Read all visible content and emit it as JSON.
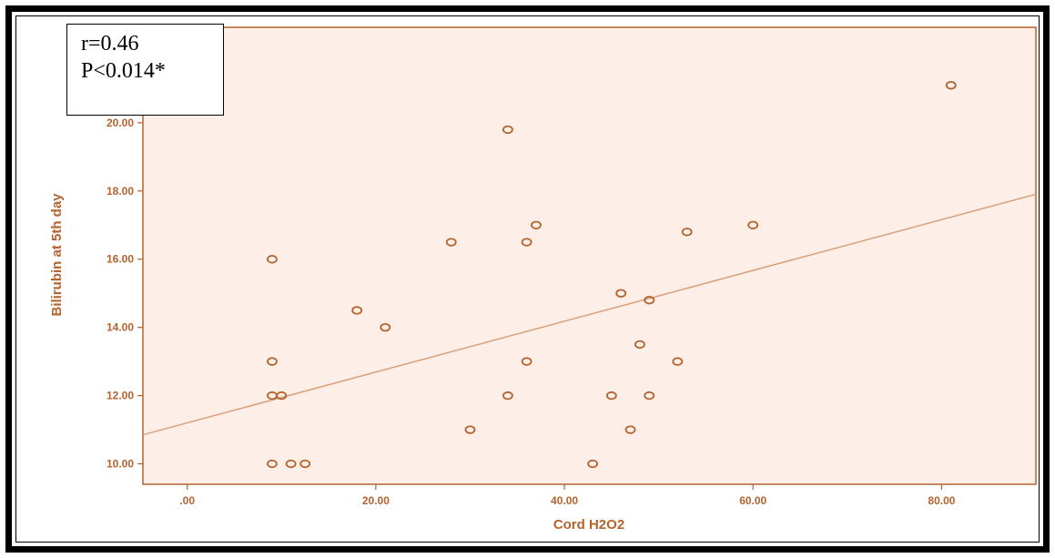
{
  "colors": {
    "accent": "#b5622d",
    "plot_background": "#fdefe8",
    "marker": "#b5622d",
    "fit_line": "#d9a07a"
  },
  "annotation": {
    "r_text": "r=0.46",
    "p_text": "P<0.014*"
  },
  "chart_data": {
    "type": "scatter",
    "xlabel": "Cord H2O2",
    "ylabel": "Bilirubin at 5th day",
    "xlim": [
      -4.7,
      90
    ],
    "ylim": [
      9.4,
      22.8
    ],
    "x_ticks": [
      0,
      20,
      40,
      60,
      80
    ],
    "x_tick_labels": [
      ".00",
      "20.00",
      "40.00",
      "60.00",
      "80.00"
    ],
    "y_ticks": [
      10,
      12,
      14,
      16,
      18,
      20
    ],
    "y_tick_labels": [
      "10.00",
      "12.00",
      "14.00",
      "16.00",
      "18.00",
      "20.00"
    ],
    "grid": false,
    "points": [
      {
        "x": 9,
        "y": 16
      },
      {
        "x": 9,
        "y": 13
      },
      {
        "x": 9,
        "y": 12
      },
      {
        "x": 10,
        "y": 12
      },
      {
        "x": 9,
        "y": 10
      },
      {
        "x": 11,
        "y": 10
      },
      {
        "x": 12.5,
        "y": 10
      },
      {
        "x": 18,
        "y": 14.5
      },
      {
        "x": 21,
        "y": 14
      },
      {
        "x": 28,
        "y": 16.5
      },
      {
        "x": 30,
        "y": 11
      },
      {
        "x": 34,
        "y": 19.8
      },
      {
        "x": 34,
        "y": 12
      },
      {
        "x": 36,
        "y": 16.5
      },
      {
        "x": 36,
        "y": 13
      },
      {
        "x": 37,
        "y": 17
      },
      {
        "x": 43,
        "y": 10
      },
      {
        "x": 45,
        "y": 12
      },
      {
        "x": 46,
        "y": 15
      },
      {
        "x": 47,
        "y": 11
      },
      {
        "x": 48,
        "y": 13.5
      },
      {
        "x": 49,
        "y": 14.8
      },
      {
        "x": 49,
        "y": 12
      },
      {
        "x": 52,
        "y": 13
      },
      {
        "x": 53,
        "y": 16.8
      },
      {
        "x": 60,
        "y": 17
      },
      {
        "x": 81,
        "y": 21.1
      }
    ],
    "fit_line": {
      "intercept": 11.2,
      "slope": 0.0745
    }
  }
}
